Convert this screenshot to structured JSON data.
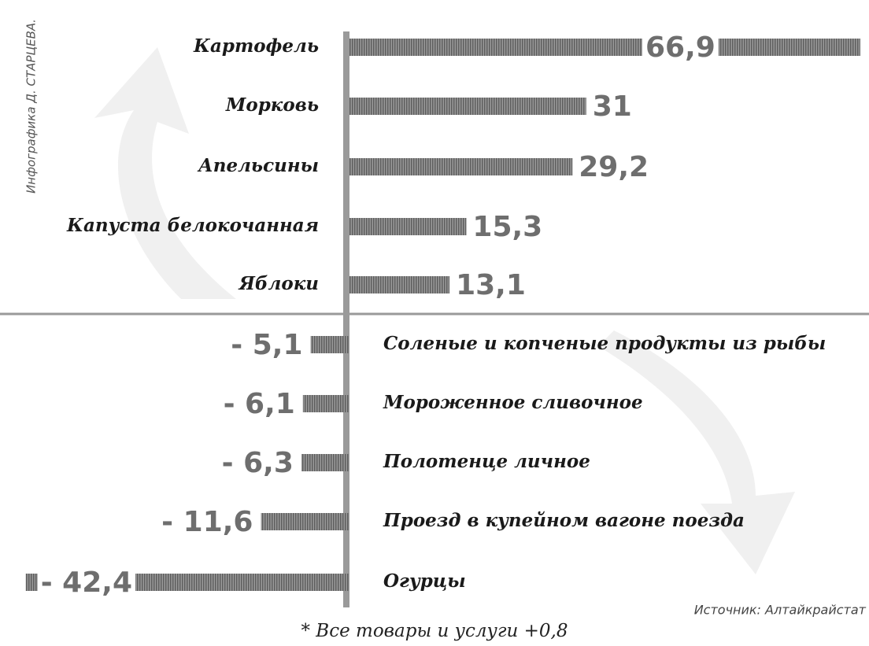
{
  "chart_data": {
    "type": "bar",
    "orientation": "horizontal",
    "categories": [
      "Картофель",
      "Морковь",
      "Апельсины",
      "Капуста белокочанная",
      "Яблоки",
      "Соленые и копченые продукты из рыбы",
      "Мороженное сливочное",
      "Полотенце личное",
      "Проезд в купейном вагоне поезда",
      "Огурцы"
    ],
    "values": [
      66.9,
      31,
      29.2,
      15.3,
      13.1,
      -5.1,
      -6.1,
      -6.3,
      -11.6,
      -42.4
    ],
    "value_labels": [
      "66,9",
      "31",
      "29,2",
      "15,3",
      "13,1",
      "- 5,1",
      "- 6,1",
      "- 6,3",
      "- 11,6",
      "- 42,4"
    ],
    "color": "#7a7a7a",
    "footnote": "* Все товары и услуги +0,8",
    "source": "Источник: Алтайкрайстат",
    "credit": "Инфографика Д. СТАРЦЕВА."
  }
}
